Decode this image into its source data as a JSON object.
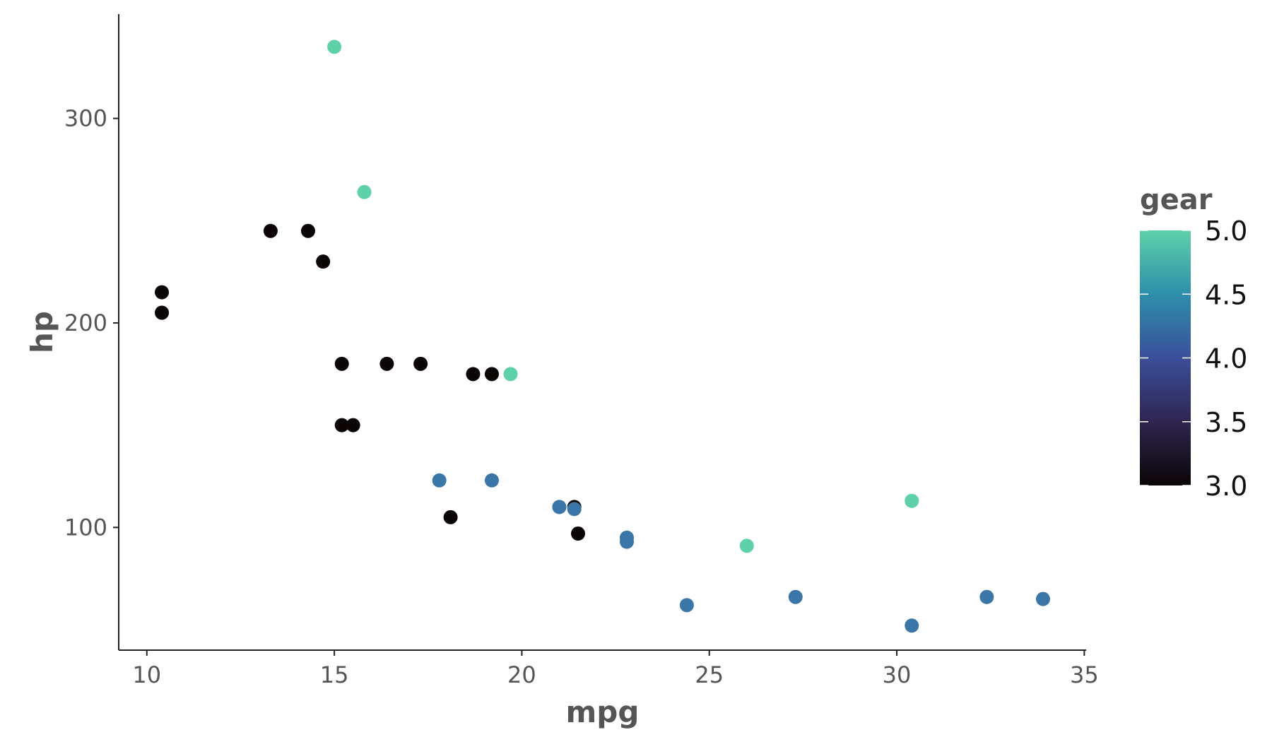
{
  "chart_data": {
    "type": "scatter",
    "xlabel": "mpg",
    "ylabel": "hp",
    "xlim": [
      9.25,
      35.05
    ],
    "ylim": [
      40,
      351
    ],
    "x_ticks": [
      10,
      15,
      20,
      25,
      30,
      35
    ],
    "y_ticks": [
      100,
      200,
      300
    ],
    "x_tick_labels": [
      "10",
      "15",
      "20",
      "25",
      "30",
      "35"
    ],
    "y_tick_labels": [
      "100",
      "200",
      "300"
    ],
    "grid": false,
    "legend": {
      "title": "gear",
      "placement": "right",
      "type": "colorbar",
      "range": [
        3.0,
        5.0
      ],
      "ticks": [
        3.0,
        3.5,
        4.0,
        4.5,
        5.0
      ],
      "tick_labels": [
        "3.0",
        "3.5",
        "4.0",
        "4.5",
        "5.0"
      ],
      "colors": [
        "#0b0505",
        "#3a3f8f",
        "#3b76a8",
        "#2ea3a8",
        "#5ed1a9"
      ]
    },
    "points": [
      {
        "x": 21.0,
        "y": 110,
        "gear": 4
      },
      {
        "x": 21.0,
        "y": 110,
        "gear": 4
      },
      {
        "x": 22.8,
        "y": 93,
        "gear": 4
      },
      {
        "x": 21.4,
        "y": 110,
        "gear": 3
      },
      {
        "x": 18.7,
        "y": 175,
        "gear": 3
      },
      {
        "x": 18.1,
        "y": 105,
        "gear": 3
      },
      {
        "x": 14.3,
        "y": 245,
        "gear": 3
      },
      {
        "x": 24.4,
        "y": 62,
        "gear": 4
      },
      {
        "x": 22.8,
        "y": 95,
        "gear": 4
      },
      {
        "x": 19.2,
        "y": 123,
        "gear": 4
      },
      {
        "x": 17.8,
        "y": 123,
        "gear": 4
      },
      {
        "x": 16.4,
        "y": 180,
        "gear": 3
      },
      {
        "x": 17.3,
        "y": 180,
        "gear": 3
      },
      {
        "x": 15.2,
        "y": 180,
        "gear": 3
      },
      {
        "x": 10.4,
        "y": 205,
        "gear": 3
      },
      {
        "x": 10.4,
        "y": 215,
        "gear": 3
      },
      {
        "x": 14.7,
        "y": 230,
        "gear": 3
      },
      {
        "x": 32.4,
        "y": 66,
        "gear": 4
      },
      {
        "x": 30.4,
        "y": 52,
        "gear": 4
      },
      {
        "x": 33.9,
        "y": 65,
        "gear": 4
      },
      {
        "x": 21.5,
        "y": 97,
        "gear": 3
      },
      {
        "x": 15.5,
        "y": 150,
        "gear": 3
      },
      {
        "x": 15.2,
        "y": 150,
        "gear": 3
      },
      {
        "x": 13.3,
        "y": 245,
        "gear": 3
      },
      {
        "x": 19.2,
        "y": 175,
        "gear": 3
      },
      {
        "x": 27.3,
        "y": 66,
        "gear": 4
      },
      {
        "x": 26.0,
        "y": 91,
        "gear": 5
      },
      {
        "x": 30.4,
        "y": 113,
        "gear": 5
      },
      {
        "x": 15.8,
        "y": 264,
        "gear": 5
      },
      {
        "x": 19.7,
        "y": 175,
        "gear": 5
      },
      {
        "x": 15.0,
        "y": 335,
        "gear": 5
      },
      {
        "x": 21.4,
        "y": 109,
        "gear": 4
      }
    ]
  }
}
